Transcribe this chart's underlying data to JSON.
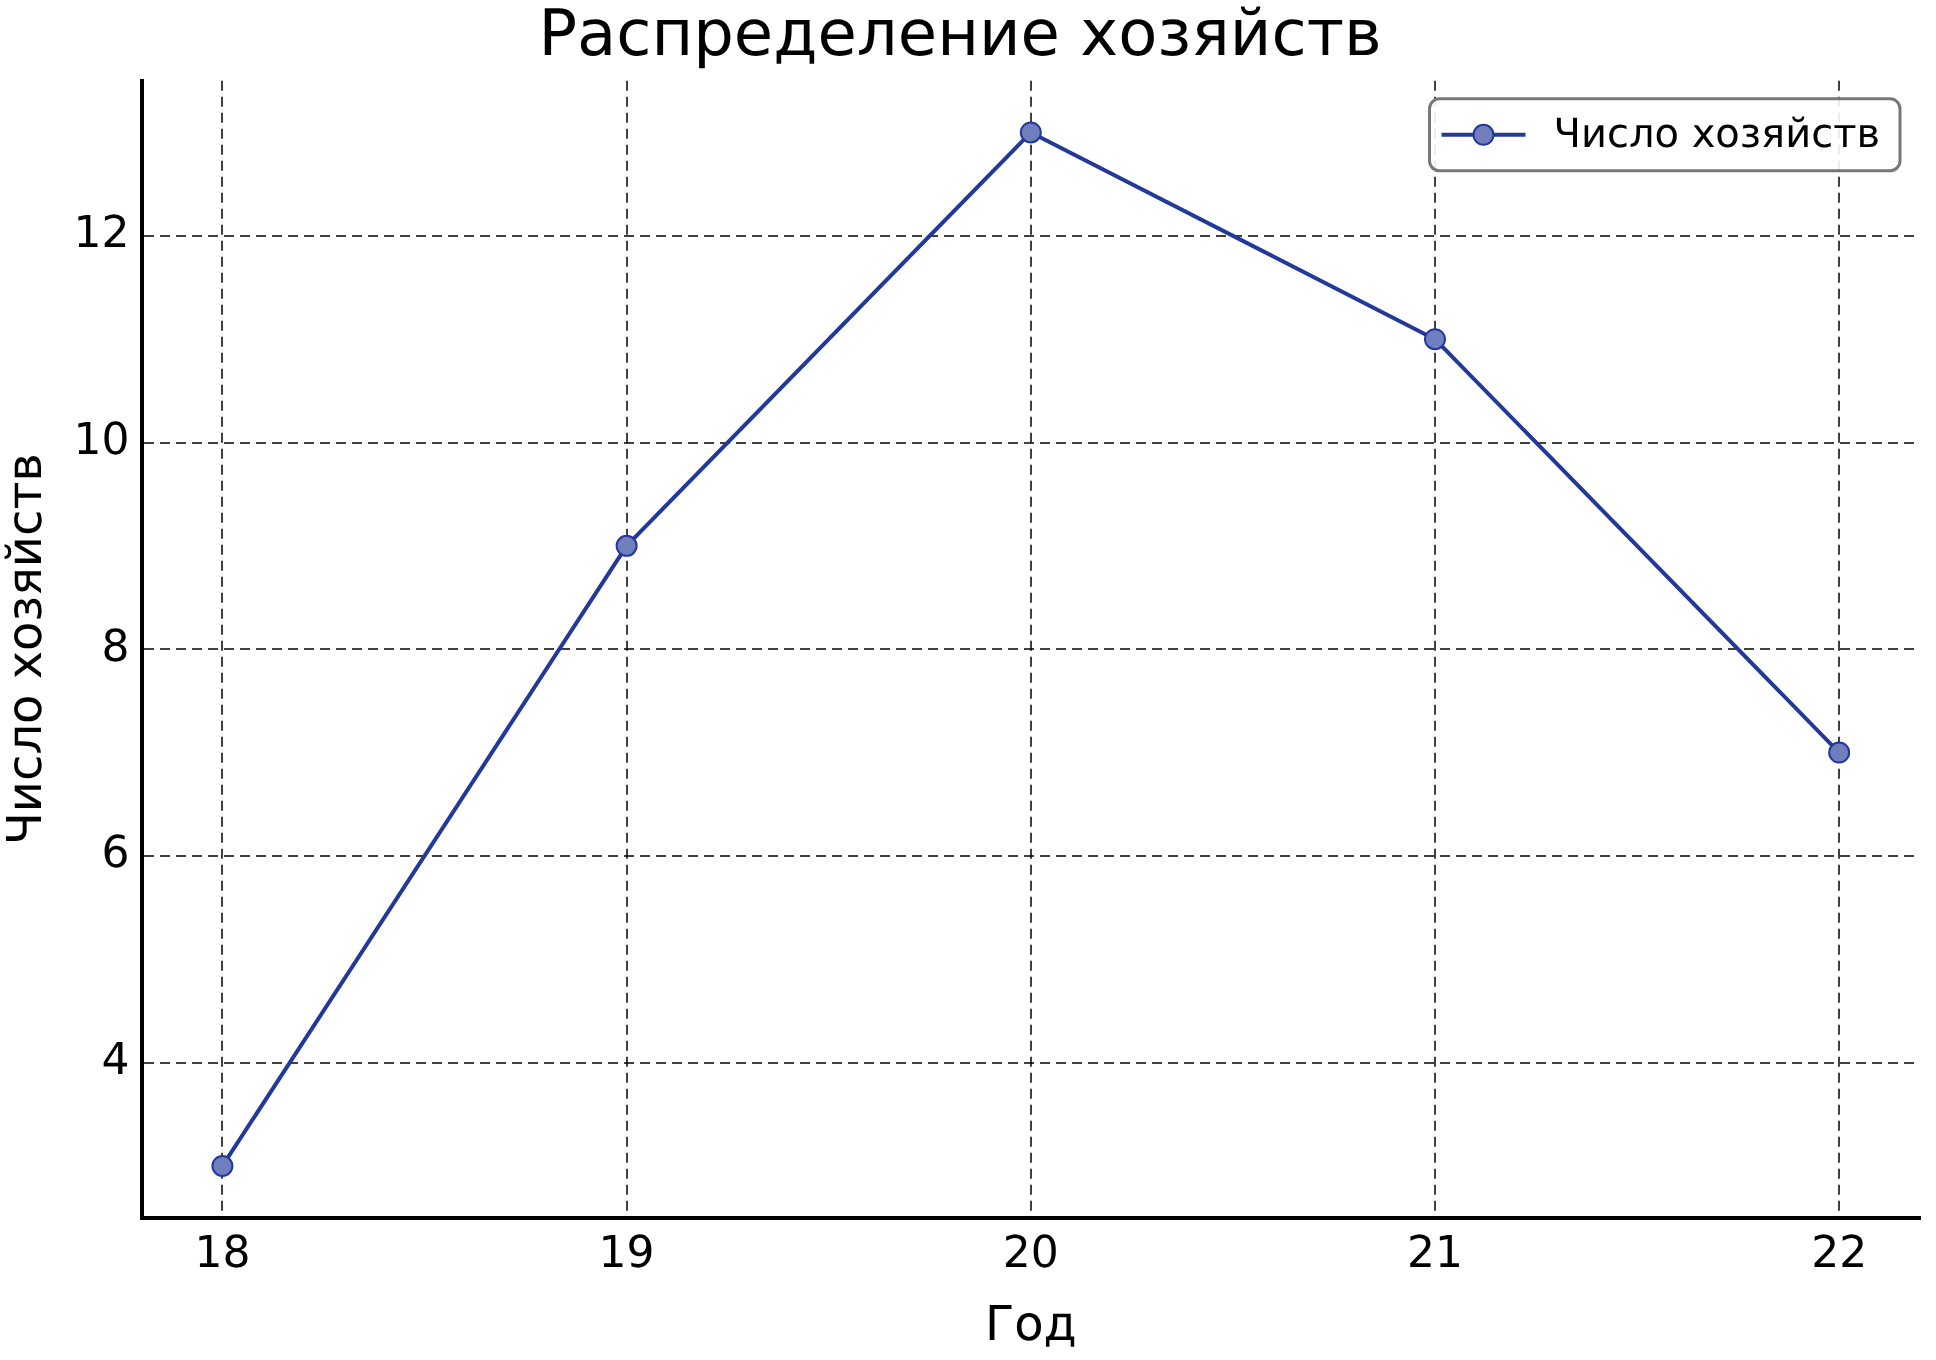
{
  "chart_data": {
    "type": "line",
    "title": "Распределение хозяйств",
    "xlabel": "Год",
    "ylabel": "Число хозяйств",
    "x": [
      18,
      19,
      20,
      21,
      22
    ],
    "series": [
      {
        "name": "Число хозяйств",
        "color": "#23399a",
        "values": [
          3,
          9,
          13,
          11,
          7
        ]
      }
    ],
    "xlim": [
      17.8,
      22.2
    ],
    "ylim": [
      2.5,
      13.5
    ],
    "xticks": [
      18,
      19,
      20,
      21,
      22
    ],
    "yticks": [
      4,
      6,
      8,
      10,
      12
    ],
    "grid": true,
    "legend": "top right",
    "marker": "circle",
    "line_style": "solid"
  }
}
